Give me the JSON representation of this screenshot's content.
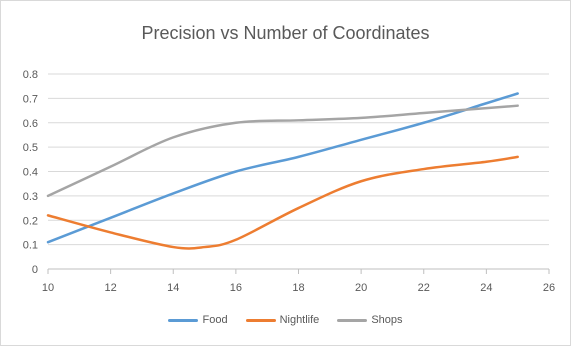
{
  "chart_data": {
    "type": "line",
    "title": "Precision vs Number of Coordinates",
    "xlabel": "",
    "ylabel": "",
    "xlim": [
      10,
      26
    ],
    "ylim": [
      0,
      0.8
    ],
    "x_ticks": [
      10,
      12,
      14,
      16,
      18,
      20,
      22,
      24,
      26
    ],
    "y_ticks": [
      0,
      0.1,
      0.2,
      0.3,
      0.4,
      0.5,
      0.6,
      0.7,
      0.8
    ],
    "grid": "horizontal",
    "legend_position": "bottom",
    "series": [
      {
        "name": "Food",
        "color": "#5b9bd5",
        "x": [
          10,
          12,
          14,
          16,
          18,
          20,
          22,
          24,
          25
        ],
        "y": [
          0.11,
          0.21,
          0.31,
          0.4,
          0.46,
          0.53,
          0.6,
          0.68,
          0.72
        ]
      },
      {
        "name": "Nightlife",
        "color": "#ed7d31",
        "x": [
          10,
          12,
          14,
          15,
          16,
          18,
          20,
          22,
          24,
          25
        ],
        "y": [
          0.22,
          0.15,
          0.09,
          0.09,
          0.12,
          0.25,
          0.36,
          0.41,
          0.44,
          0.46
        ]
      },
      {
        "name": "Shops",
        "color": "#a5a5a5",
        "x": [
          10,
          12,
          14,
          16,
          18,
          20,
          22,
          24,
          25
        ],
        "y": [
          0.3,
          0.42,
          0.54,
          0.6,
          0.61,
          0.62,
          0.64,
          0.66,
          0.67
        ]
      }
    ]
  }
}
